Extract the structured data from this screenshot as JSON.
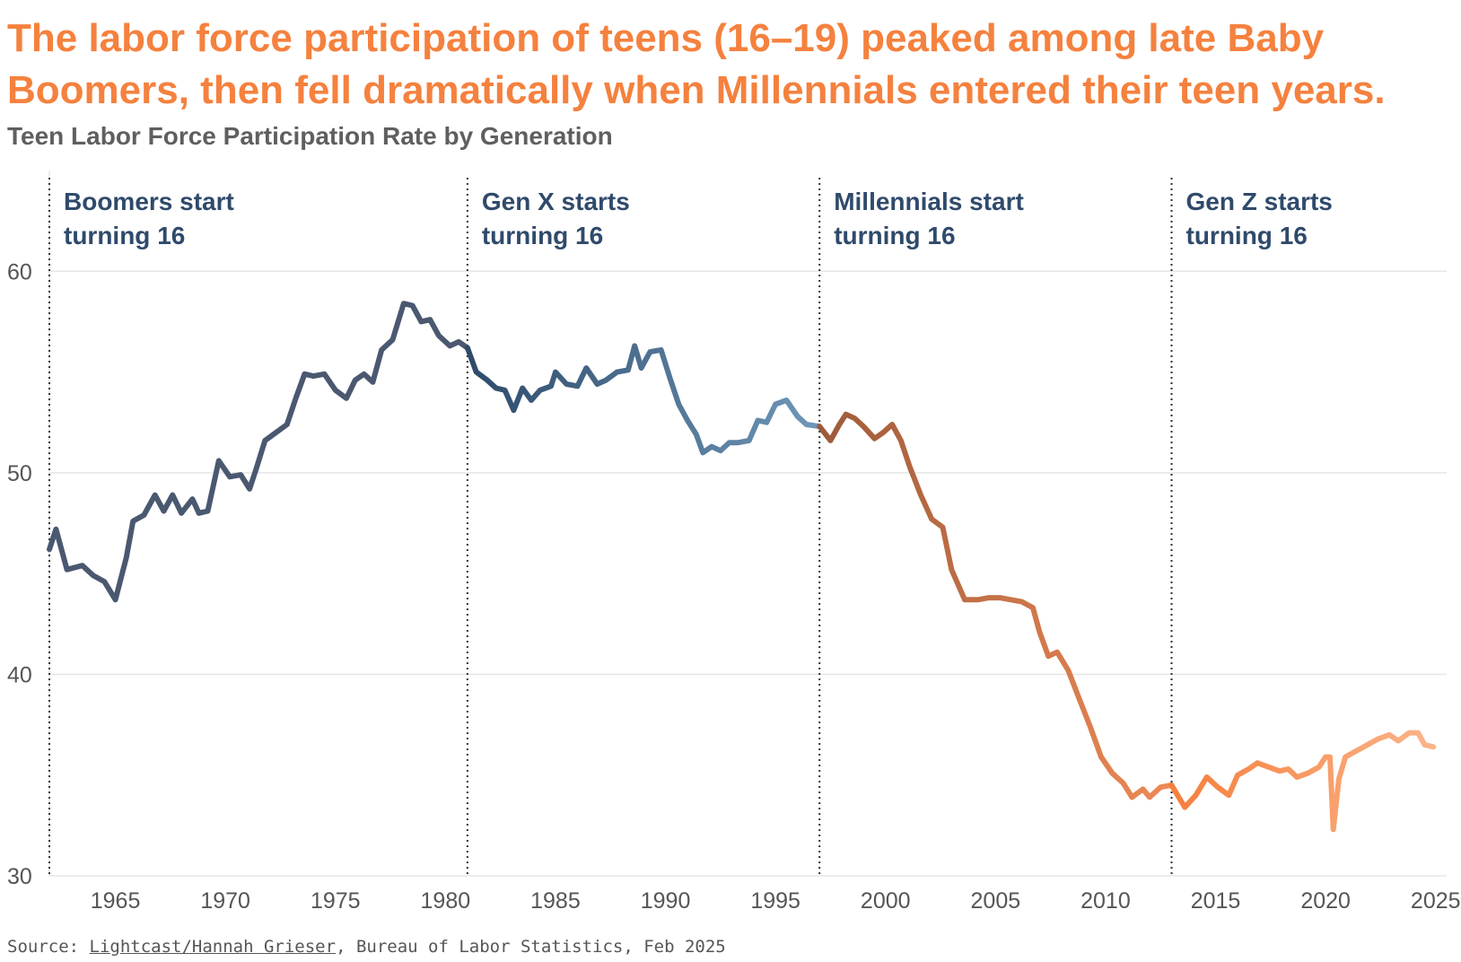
{
  "header": {
    "title_line1": "The labor force participation of teens (16–19) peaked among late Baby",
    "title_line2": "Boomers, then fell dramatically when Millennials entered their teen years.",
    "subtitle": "Teen Labor Force Participation Rate by Generation"
  },
  "footer": {
    "source_prefix": "Source: ",
    "source_link": "Lightcast/Hannah Grieser",
    "source_suffix": ", Bureau of Labor Statistics, Feb 2025"
  },
  "colors": {
    "title": "#f5813e",
    "annotation": "#2f4a6b",
    "grid": "#e6e6e6",
    "tick": "#555555"
  },
  "chart_data": {
    "type": "line",
    "title": "Teen Labor Force Participation Rate by Generation",
    "xlabel": "",
    "ylabel": "",
    "xlim": [
      1962,
      2025.5
    ],
    "ylim": [
      30,
      65
    ],
    "grid": true,
    "x_ticks": [
      1965,
      1970,
      1975,
      1980,
      1985,
      1990,
      1995,
      2000,
      2005,
      2010,
      2015,
      2020,
      2025
    ],
    "y_ticks": [
      30,
      40,
      50,
      60
    ],
    "annotations": [
      {
        "x": 1962,
        "line1": "Boomers start",
        "line2": "turning 16"
      },
      {
        "x": 1981,
        "line1": "Gen X starts",
        "line2": "turning 16"
      },
      {
        "x": 1997,
        "line1": "Millennials start",
        "line2": "turning 16"
      },
      {
        "x": 2013,
        "line1": "Gen Z starts",
        "line2": "turning 16"
      }
    ],
    "series": [
      {
        "colors": [
          "#4a5870",
          "#4a5870"
        ],
        "points": [
          [
            1962,
            46.2
          ],
          [
            1962.3,
            47.2
          ],
          [
            1962.8,
            45.2
          ],
          [
            1963.5,
            45.4
          ],
          [
            1964,
            44.9
          ],
          [
            1964.5,
            44.6
          ],
          [
            1965,
            43.7
          ],
          [
            1965.5,
            45.8
          ],
          [
            1965.8,
            47.6
          ],
          [
            1966.3,
            47.9
          ],
          [
            1966.8,
            48.9
          ],
          [
            1967.2,
            48.1
          ],
          [
            1967.6,
            48.9
          ],
          [
            1968,
            48.0
          ],
          [
            1968.5,
            48.7
          ],
          [
            1968.8,
            48.0
          ],
          [
            1969.2,
            48.1
          ],
          [
            1969.7,
            50.6
          ],
          [
            1970.2,
            49.8
          ],
          [
            1970.7,
            49.9
          ],
          [
            1971.1,
            49.2
          ],
          [
            1971.4,
            50.2
          ],
          [
            1971.8,
            51.6
          ],
          [
            1972.3,
            52.0
          ],
          [
            1972.8,
            52.4
          ],
          [
            1973.2,
            53.7
          ],
          [
            1973.6,
            54.9
          ],
          [
            1974,
            54.8
          ],
          [
            1974.5,
            54.9
          ],
          [
            1975,
            54.1
          ],
          [
            1975.5,
            53.7
          ],
          [
            1975.9,
            54.6
          ],
          [
            1976.3,
            54.9
          ],
          [
            1976.7,
            54.5
          ],
          [
            1977.1,
            56.1
          ],
          [
            1977.6,
            56.6
          ],
          [
            1978.1,
            58.4
          ],
          [
            1978.5,
            58.3
          ],
          [
            1978.9,
            57.5
          ],
          [
            1979.3,
            57.6
          ],
          [
            1979.7,
            56.8
          ],
          [
            1980.2,
            56.3
          ],
          [
            1980.6,
            56.5
          ],
          [
            1981,
            56.2
          ]
        ]
      },
      {
        "colors": [
          "#2e4a6a",
          "#6e97b8"
        ],
        "points": [
          [
            1981,
            56.2
          ],
          [
            1981.4,
            55.0
          ],
          [
            1981.9,
            54.6
          ],
          [
            1982.3,
            54.2
          ],
          [
            1982.7,
            54.1
          ],
          [
            1983.1,
            53.1
          ],
          [
            1983.5,
            54.2
          ],
          [
            1983.9,
            53.6
          ],
          [
            1984.3,
            54.1
          ],
          [
            1984.8,
            54.3
          ],
          [
            1985,
            55.0
          ],
          [
            1985.5,
            54.4
          ],
          [
            1986,
            54.3
          ],
          [
            1986.4,
            55.2
          ],
          [
            1986.9,
            54.4
          ],
          [
            1987.3,
            54.6
          ],
          [
            1987.8,
            55.0
          ],
          [
            1988.3,
            55.1
          ],
          [
            1988.6,
            56.3
          ],
          [
            1988.9,
            55.2
          ],
          [
            1989.3,
            56.0
          ],
          [
            1989.8,
            56.1
          ],
          [
            1990.2,
            54.7
          ],
          [
            1990.6,
            53.4
          ],
          [
            1991,
            52.6
          ],
          [
            1991.4,
            51.9
          ],
          [
            1991.7,
            51.0
          ],
          [
            1992.1,
            51.3
          ],
          [
            1992.5,
            51.1
          ],
          [
            1992.9,
            51.5
          ],
          [
            1993.3,
            51.5
          ],
          [
            1993.8,
            51.6
          ],
          [
            1994.2,
            52.6
          ],
          [
            1994.6,
            52.5
          ],
          [
            1995,
            53.4
          ],
          [
            1995.5,
            53.6
          ],
          [
            1996,
            52.8
          ],
          [
            1996.4,
            52.4
          ],
          [
            1997,
            52.3
          ]
        ]
      },
      {
        "colors": [
          "#9c5a3a",
          "#f08a55"
        ],
        "points": [
          [
            1997,
            52.3
          ],
          [
            1997.5,
            51.6
          ],
          [
            1997.9,
            52.4
          ],
          [
            1998.2,
            52.9
          ],
          [
            1998.6,
            52.7
          ],
          [
            1999,
            52.3
          ],
          [
            1999.5,
            51.7
          ],
          [
            1999.9,
            52.0
          ],
          [
            2000.3,
            52.4
          ],
          [
            2000.7,
            51.6
          ],
          [
            2001.1,
            50.3
          ],
          [
            2001.6,
            48.9
          ],
          [
            2002.1,
            47.7
          ],
          [
            2002.6,
            47.3
          ],
          [
            2003,
            45.2
          ],
          [
            2003.6,
            43.7
          ],
          [
            2004.2,
            43.7
          ],
          [
            2004.7,
            43.8
          ],
          [
            2005.2,
            43.8
          ],
          [
            2005.7,
            43.7
          ],
          [
            2006.2,
            43.6
          ],
          [
            2006.7,
            43.3
          ],
          [
            2007,
            42.1
          ],
          [
            2007.4,
            40.9
          ],
          [
            2007.8,
            41.1
          ],
          [
            2008.3,
            40.2
          ],
          [
            2008.8,
            38.8
          ],
          [
            2009.3,
            37.4
          ],
          [
            2009.8,
            35.9
          ],
          [
            2010.3,
            35.1
          ],
          [
            2010.8,
            34.6
          ],
          [
            2011.2,
            33.9
          ],
          [
            2011.7,
            34.3
          ],
          [
            2012,
            33.9
          ],
          [
            2012.5,
            34.4
          ],
          [
            2013,
            34.5
          ]
        ]
      },
      {
        "colors": [
          "#f57f3c",
          "#fbb48a"
        ],
        "points": [
          [
            2013,
            34.5
          ],
          [
            2013.6,
            33.4
          ],
          [
            2014.1,
            34.0
          ],
          [
            2014.6,
            34.9
          ],
          [
            2015.1,
            34.4
          ],
          [
            2015.6,
            34.0
          ],
          [
            2016,
            35.0
          ],
          [
            2016.5,
            35.3
          ],
          [
            2016.9,
            35.6
          ],
          [
            2017.4,
            35.4
          ],
          [
            2017.9,
            35.2
          ],
          [
            2018.3,
            35.3
          ],
          [
            2018.7,
            34.9
          ],
          [
            2019.2,
            35.1
          ],
          [
            2019.7,
            35.4
          ],
          [
            2020,
            35.9
          ],
          [
            2020.2,
            35.9
          ],
          [
            2020.35,
            32.3
          ],
          [
            2020.6,
            34.8
          ],
          [
            2020.9,
            35.9
          ],
          [
            2021.4,
            36.2
          ],
          [
            2021.9,
            36.5
          ],
          [
            2022.4,
            36.8
          ],
          [
            2022.9,
            37.0
          ],
          [
            2023.3,
            36.7
          ],
          [
            2023.8,
            37.1
          ],
          [
            2024.2,
            37.1
          ],
          [
            2024.5,
            36.5
          ],
          [
            2024.9,
            36.4
          ]
        ]
      }
    ]
  }
}
